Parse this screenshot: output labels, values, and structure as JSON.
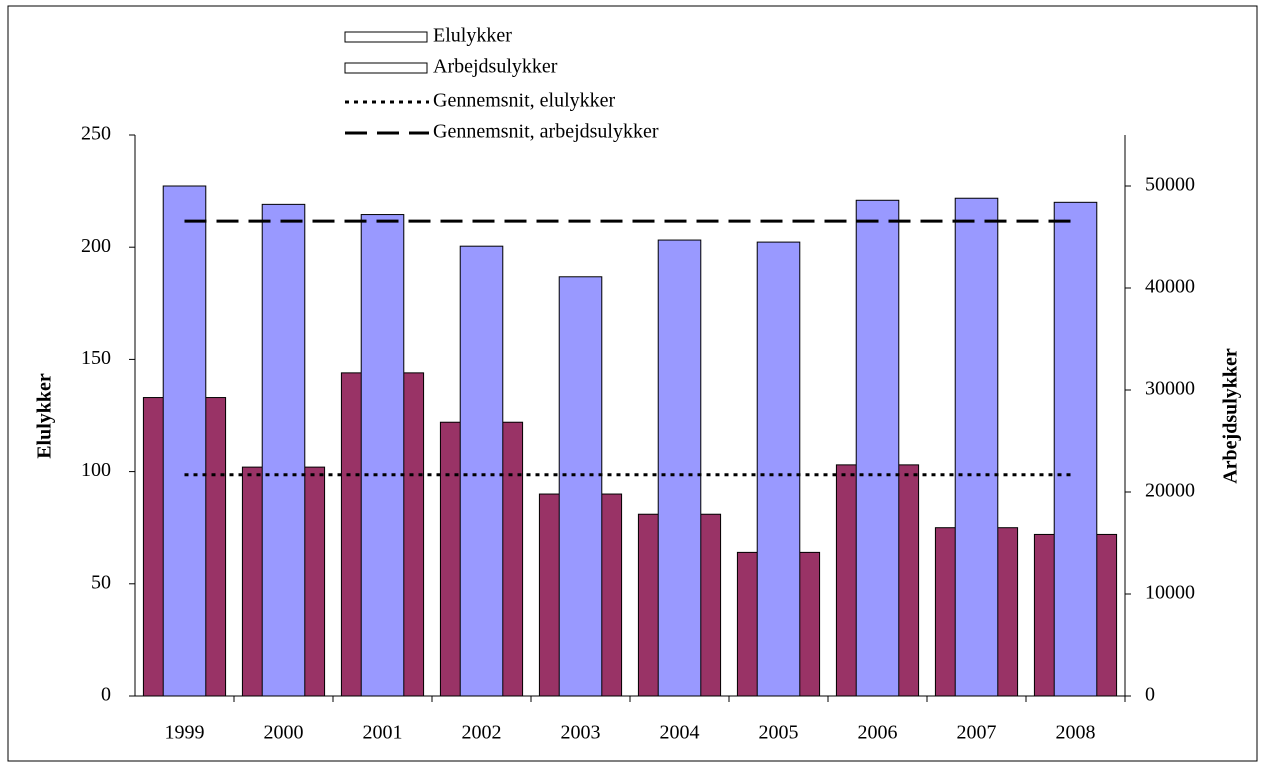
{
  "chart_data": {
    "type": "bar",
    "categories": [
      "1999",
      "2000",
      "2001",
      "2002",
      "2003",
      "2004",
      "2005",
      "2006",
      "2007",
      "2008"
    ],
    "series": [
      {
        "name": "Elulykker",
        "color": "#993366",
        "axis": "y",
        "values": [
          133,
          102,
          144,
          122,
          90,
          81,
          64,
          103,
          75,
          72
        ]
      },
      {
        "name": "Arbejdsulykker",
        "color": "#9999ff",
        "axis": "y2",
        "values": [
          50000,
          48200,
          47200,
          44100,
          41100,
          44700,
          44500,
          48600,
          48800,
          48400
        ]
      }
    ],
    "reference_lines": [
      {
        "name": "Gennemsnit, elulykker",
        "axis": "y",
        "value": 98.6,
        "style": "dotted",
        "color": "#000000"
      },
      {
        "name": "Gennemsnit, arbejdsulykker",
        "axis": "y2",
        "value": 46560,
        "style": "dashed",
        "color": "#000000"
      }
    ],
    "ylabel": "Elulykker",
    "y2label": "Arbejdsulykker",
    "ylim": [
      0,
      250
    ],
    "yticks": [
      0,
      50,
      100,
      150,
      200,
      250
    ],
    "y2lim": [
      0,
      55000
    ],
    "y2ticks": [
      0,
      10000,
      20000,
      30000,
      40000,
      50000
    ],
    "legend": "top"
  }
}
